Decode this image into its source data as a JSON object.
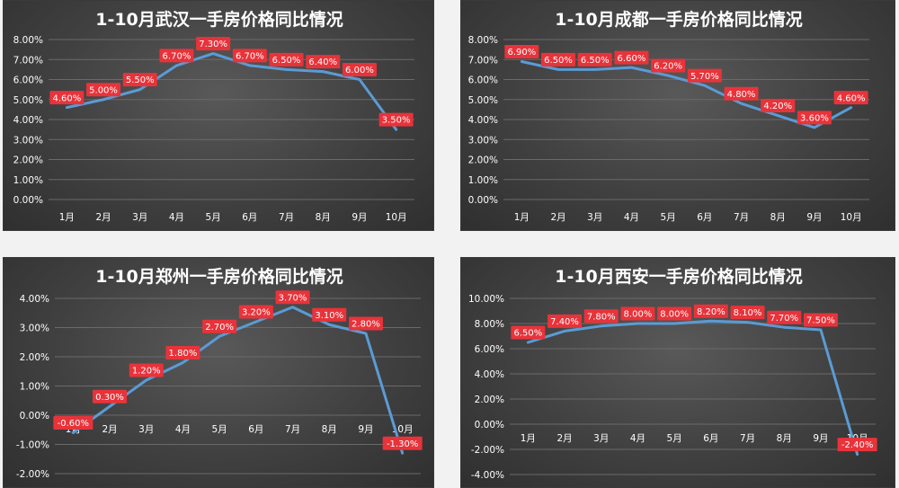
{
  "chart_data": [
    {
      "type": "line",
      "title": "1-10月武汉一手房价格同比情况",
      "categories": [
        "1月",
        "2月",
        "3月",
        "4月",
        "5月",
        "6月",
        "7月",
        "8月",
        "9月",
        "10月"
      ],
      "values": [
        4.6,
        5.0,
        5.5,
        6.7,
        7.3,
        6.7,
        6.5,
        6.4,
        6.0,
        3.5
      ],
      "value_labels": [
        "4.60%",
        "5.00%",
        "5.50%",
        "6.70%",
        "7.30%",
        "6.70%",
        "6.50%",
        "6.40%",
        "6.00%",
        "3.50%"
      ],
      "ylim": [
        0,
        8
      ],
      "yticks": [
        0,
        1,
        2,
        3,
        4,
        5,
        6,
        7,
        8
      ],
      "ytick_labels": [
        "0.00%",
        "1.00%",
        "2.00%",
        "3.00%",
        "4.00%",
        "5.00%",
        "6.00%",
        "7.00%",
        "8.00%"
      ],
      "grid": true,
      "line_color": "#5b9bd5",
      "label_color": "#e8333a"
    },
    {
      "type": "line",
      "title": "1-10月成都一手房价格同比情况",
      "categories": [
        "1月",
        "2月",
        "3月",
        "4月",
        "5月",
        "6月",
        "7月",
        "8月",
        "9月",
        "10月"
      ],
      "values": [
        6.9,
        6.5,
        6.5,
        6.6,
        6.2,
        5.7,
        4.8,
        4.2,
        3.6,
        4.6
      ],
      "value_labels": [
        "6.90%",
        "6.50%",
        "6.50%",
        "6.60%",
        "6.20%",
        "5.70%",
        "4.80%",
        "4.20%",
        "3.60%",
        "4.60%"
      ],
      "ylim": [
        0,
        8
      ],
      "yticks": [
        0,
        1,
        2,
        3,
        4,
        5,
        6,
        7,
        8
      ],
      "ytick_labels": [
        "0.00%",
        "1.00%",
        "2.00%",
        "3.00%",
        "4.00%",
        "5.00%",
        "6.00%",
        "7.00%",
        "8.00%"
      ],
      "grid": true,
      "line_color": "#5b9bd5",
      "label_color": "#e8333a"
    },
    {
      "type": "line",
      "title": "1-10月郑州一手房价格同比情况",
      "categories": [
        "1月",
        "2月",
        "3月",
        "4月",
        "5月",
        "6月",
        "7月",
        "8月",
        "9月",
        "10月"
      ],
      "values": [
        -0.6,
        0.3,
        1.2,
        1.8,
        2.7,
        3.2,
        3.7,
        3.1,
        2.8,
        -1.3
      ],
      "value_labels": [
        "-0.60%",
        "0.30%",
        "1.20%",
        "1.80%",
        "2.70%",
        "3.20%",
        "3.70%",
        "3.10%",
        "2.80%",
        "-1.30%"
      ],
      "ylim": [
        -2,
        4
      ],
      "yticks": [
        -2,
        -1,
        0,
        1,
        2,
        3,
        4
      ],
      "ytick_labels": [
        "-2.00%",
        "-1.00%",
        "0.00%",
        "1.00%",
        "2.00%",
        "3.00%",
        "4.00%"
      ],
      "grid": true,
      "line_color": "#5b9bd5",
      "label_color": "#e8333a"
    },
    {
      "type": "line",
      "title": "1-10月西安一手房价格同比情况",
      "categories": [
        "1月",
        "2月",
        "3月",
        "4月",
        "5月",
        "6月",
        "7月",
        "8月",
        "9月",
        "10月"
      ],
      "values": [
        6.5,
        7.4,
        7.8,
        8.0,
        8.0,
        8.2,
        8.1,
        7.7,
        7.5,
        -2.4
      ],
      "value_labels": [
        "6.50%",
        "7.40%",
        "7.80%",
        "8.00%",
        "8.00%",
        "8.20%",
        "8.10%",
        "7.70%",
        "7.50%",
        "-2.40%"
      ],
      "ylim": [
        -4,
        10
      ],
      "yticks": [
        -4,
        -2,
        0,
        2,
        4,
        6,
        8,
        10
      ],
      "ytick_labels": [
        "-4.00%",
        "-2.00%",
        "0.00%",
        "2.00%",
        "4.00%",
        "6.00%",
        "8.00%",
        "10.00%"
      ],
      "grid": true,
      "line_color": "#5b9bd5",
      "label_color": "#e8333a"
    }
  ]
}
